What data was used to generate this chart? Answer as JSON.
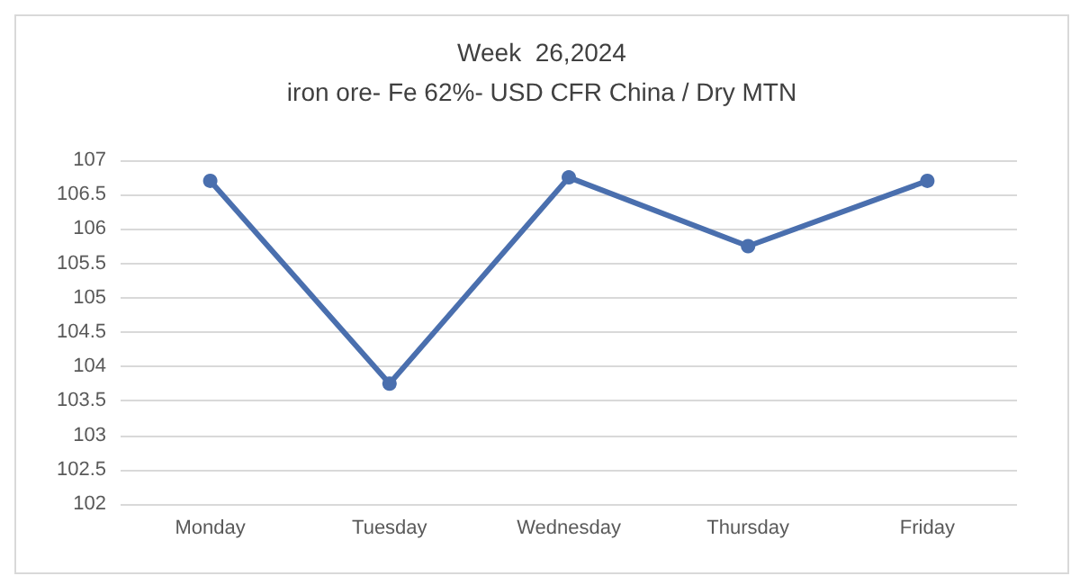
{
  "chart_data": {
    "type": "line",
    "title": "Week  26,2024",
    "subtitle": "iron ore- Fe 62%- USD CFR China / Dry MTN",
    "categories": [
      "Monday",
      "Tuesday",
      "Wednesday",
      "Thursday",
      "Friday"
    ],
    "series": [
      {
        "color": "#4a6fae",
        "values": [
          106.7,
          103.75,
          106.75,
          105.75,
          106.7
        ]
      }
    ],
    "ylim": [
      102,
      107
    ],
    "yticks": [
      102,
      102.5,
      103,
      103.5,
      104,
      104.5,
      105,
      105.5,
      106,
      106.5,
      107
    ],
    "grid": "y",
    "marker": "circle"
  }
}
